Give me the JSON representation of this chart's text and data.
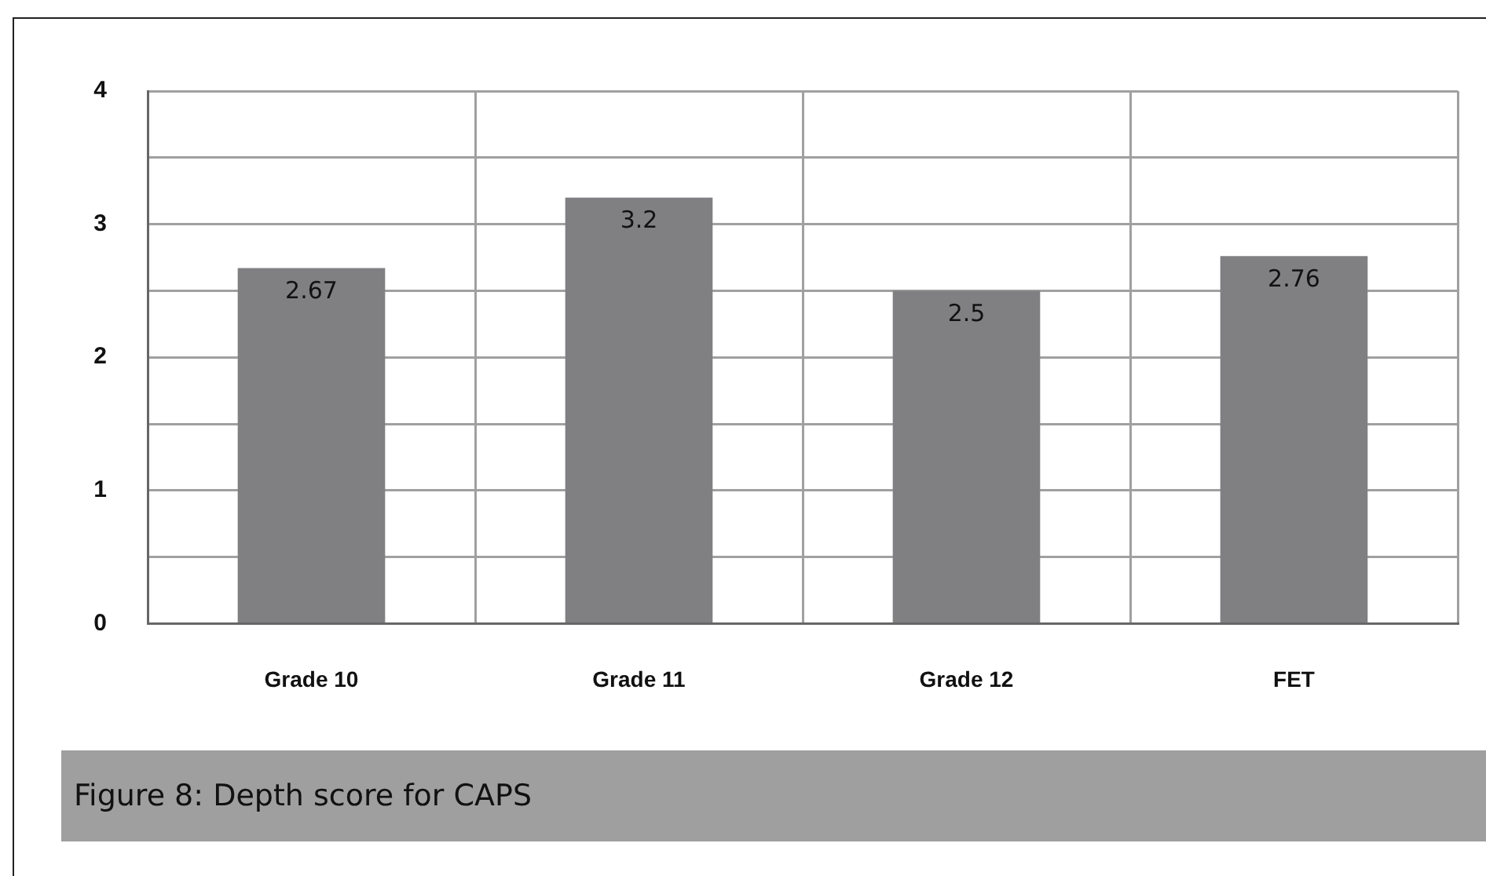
{
  "chart_data": {
    "type": "bar",
    "title": "Figure 8: Depth score for CAPS",
    "categories": [
      "Grade 10",
      "Grade 11",
      "Grade 12",
      "FET"
    ],
    "values": [
      2.67,
      3.2,
      2.5,
      2.76
    ],
    "color": "#808083",
    "ylim": [
      0,
      4
    ],
    "yticks": [
      0,
      {
        "value": 0.5,
        "label": null
      },
      1,
      {
        "value": 1.5,
        "label": null
      },
      2,
      {
        "value": 2.5,
        "label": null
      },
      3,
      {
        "value": 3.5,
        "label": null
      },
      4
    ],
    "grid": true,
    "data_labels": true,
    "legend": false
  }
}
